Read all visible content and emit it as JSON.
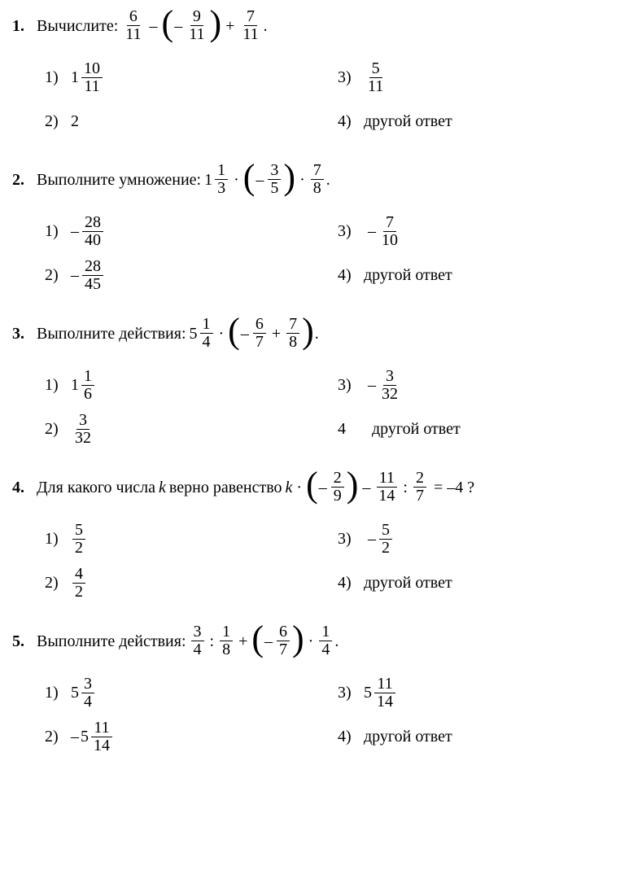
{
  "problems": [
    {
      "num": "1.",
      "prompt_label": "Вычислите:",
      "expr": {
        "t1": {
          "n": "6",
          "d": "11"
        },
        "t2": {
          "n": "9",
          "d": "11"
        },
        "t3": {
          "n": "7",
          "d": "11"
        },
        "end": "."
      },
      "opts": {
        "a1": "1)",
        "a2": "2)",
        "a3": "3)",
        "a4": "4)",
        "v1_whole": "1",
        "v1_n": "10",
        "v1_d": "11",
        "v2": "2",
        "v3_n": "5",
        "v3_d": "11",
        "v4": "другой ответ"
      }
    },
    {
      "num": "2.",
      "prompt_label": "Выполните умножение:",
      "expr": {
        "w": "1",
        "t1": {
          "n": "1",
          "d": "3"
        },
        "t2": {
          "n": "3",
          "d": "5"
        },
        "t3": {
          "n": "7",
          "d": "8"
        },
        "end": "."
      },
      "opts": {
        "a1": "1)",
        "a2": "2)",
        "a3": "3)",
        "a4": "4)",
        "v1_n": "28",
        "v1_d": "40",
        "v2_n": "28",
        "v2_d": "45",
        "v3_n": "7",
        "v3_d": "10",
        "v4": "другой ответ"
      }
    },
    {
      "num": "3.",
      "prompt_label": "Выполните действия:",
      "expr": {
        "w": "5",
        "t1": {
          "n": "1",
          "d": "4"
        },
        "t2": {
          "n": "6",
          "d": "7"
        },
        "t3": {
          "n": "7",
          "d": "8"
        },
        "end": "."
      },
      "opts": {
        "a1": "1)",
        "a2": "2)",
        "a3": "3)",
        "a4": "4",
        "v1_whole": "1",
        "v1_n": "1",
        "v1_d": "6",
        "v2_n": "3",
        "v2_d": "32",
        "v3_n": "3",
        "v3_d": "32",
        "v4": "другой ответ"
      }
    },
    {
      "num": "4.",
      "prompt_pre": "Для какого числа ",
      "kvar": "k",
      "prompt_mid": " верно равенство ",
      "expr": {
        "t1": {
          "n": "2",
          "d": "9"
        },
        "t2": {
          "n": "11",
          "d": "14"
        },
        "t3": {
          "n": "2",
          "d": "7"
        },
        "rhs": "= –4 ?"
      },
      "opts": {
        "a1": "1)",
        "a2": "2)",
        "a3": "3)",
        "a4": "4)",
        "v1_n": "5",
        "v1_d": "2",
        "v2_n": "4",
        "v2_d": "2",
        "v3_n": "5",
        "v3_d": "2",
        "v4": "другой ответ"
      }
    },
    {
      "num": "5.",
      "prompt_label": "Выполните действия:",
      "expr": {
        "t1": {
          "n": "3",
          "d": "4"
        },
        "t2": {
          "n": "1",
          "d": "8"
        },
        "t3": {
          "n": "6",
          "d": "7"
        },
        "t4": {
          "n": "1",
          "d": "4"
        },
        "end": "."
      },
      "opts": {
        "a1": "1)",
        "a2": "2)",
        "a3": "3)",
        "a4": "4)",
        "v1_whole": "5",
        "v1_n": "3",
        "v1_d": "4",
        "v2_whole": "5",
        "v2_n": "11",
        "v2_d": "14",
        "v3_whole": "5",
        "v3_n": "11",
        "v3_d": "14",
        "v4": "другой ответ"
      }
    }
  ]
}
